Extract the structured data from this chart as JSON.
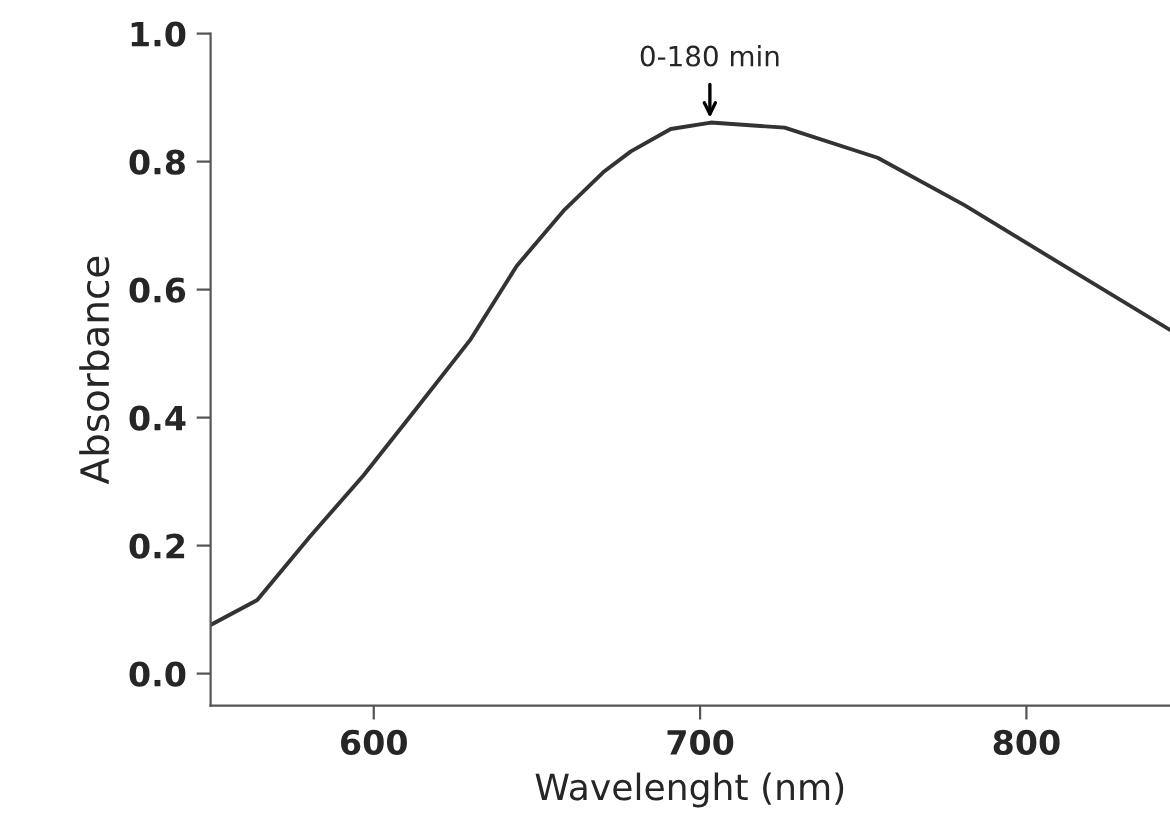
{
  "chart_data": {
    "type": "line",
    "xlabel": "Wavelenght (nm)",
    "ylabel": "Absorbance",
    "xlim": [
      550,
      844
    ],
    "ylim": [
      -0.05,
      1.0
    ],
    "xticks": [
      600,
      700,
      800
    ],
    "yticks": [
      {
        "value": 0,
        "label": "0.0"
      },
      0.2,
      0.4,
      0.6,
      0.8,
      {
        "value": 1,
        "label": "1.0"
      }
    ],
    "grid": false,
    "marker": "none",
    "line_style": "solid",
    "annotations": [
      {
        "text": "0-180 min",
        "x": 703,
        "y": 0.86
      }
    ],
    "series": [
      {
        "color": "#333333",
        "x": [
          550,
          564.3,
          580.6,
          596.9,
          613.2,
          629.5,
          643.8,
          658.5,
          670.7,
          678.8,
          691,
          703.3,
          725.9,
          754.4,
          781,
          811.6,
          844
        ],
        "values": [
          0.076,
          0.115,
          0.215,
          0.31,
          0.415,
          0.521,
          0.637,
          0.725,
          0.785,
          0.816,
          0.851,
          0.861,
          0.853,
          0.806,
          0.732,
          0.637,
          0.537
        ]
      }
    ]
  }
}
